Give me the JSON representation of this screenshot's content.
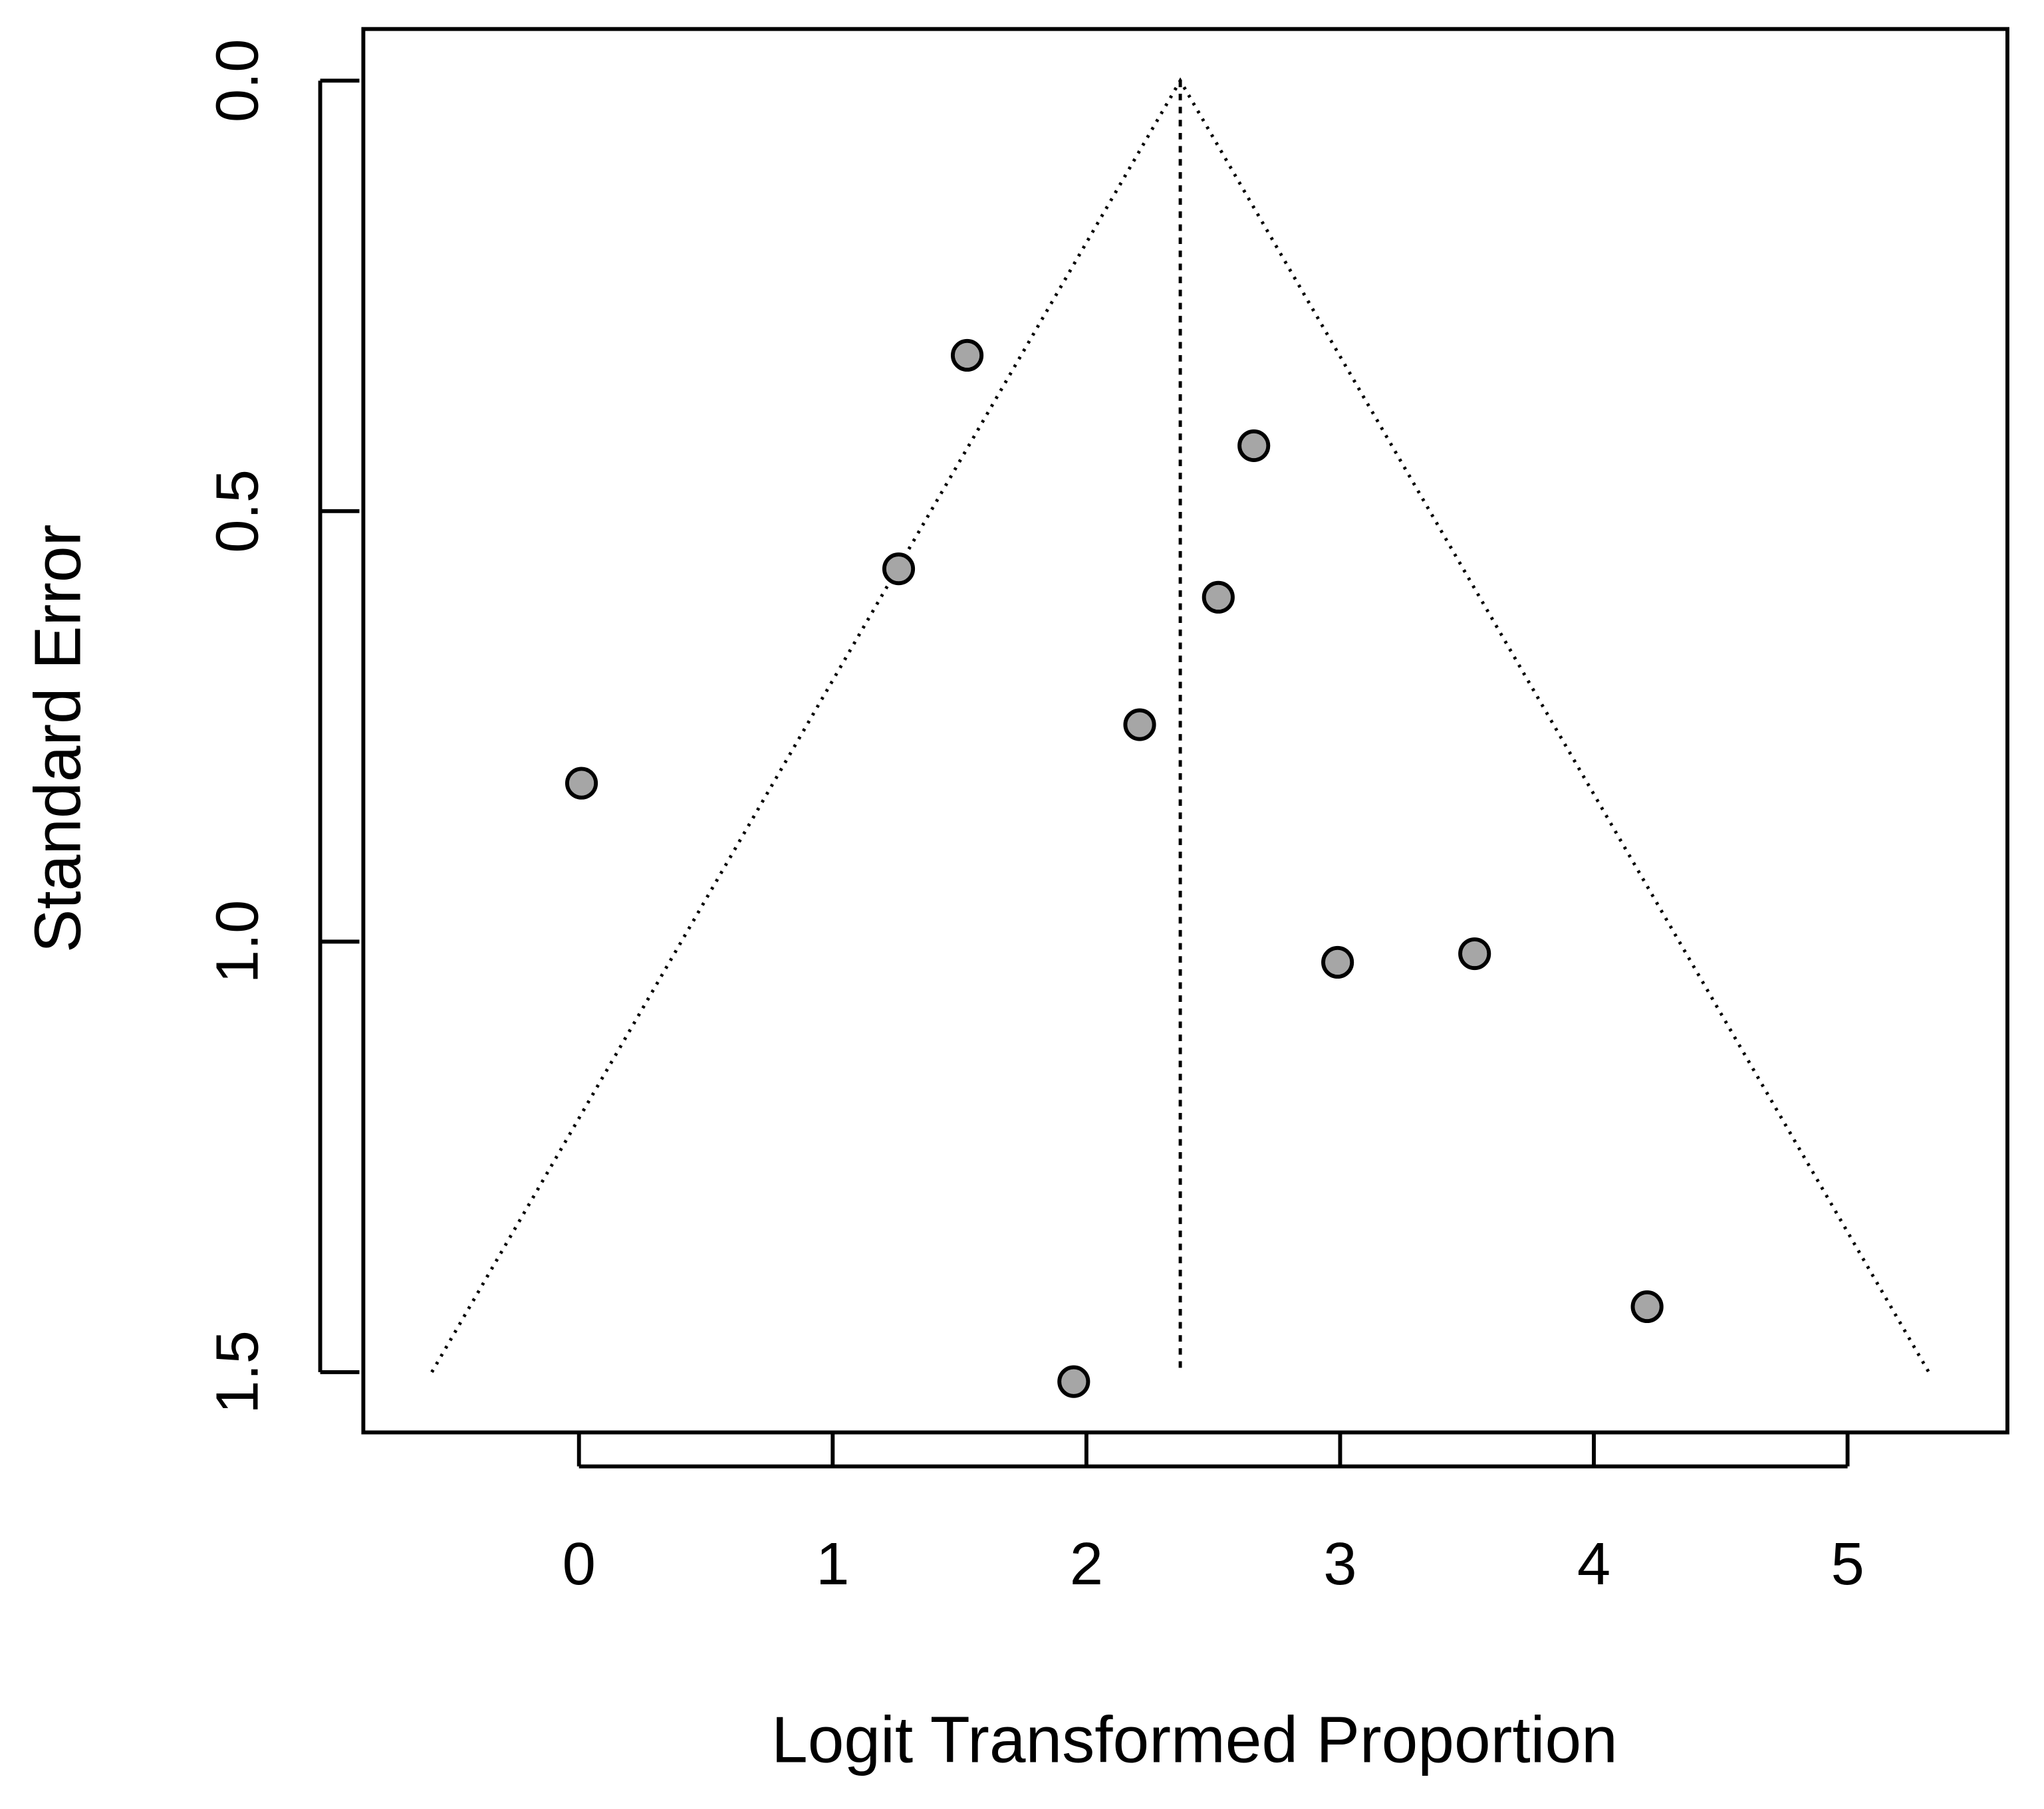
{
  "chart_data": {
    "type": "scatter",
    "x_label": "Logit Transformed Proportion",
    "y_label": "Standard Error",
    "x": [
      1.53,
      2.66,
      1.26,
      2.52,
      2.21,
      0.01,
      2.99,
      3.53,
      4.21,
      1.95
    ],
    "values": [
      0.319,
      0.424,
      0.567,
      0.6,
      0.748,
      0.816,
      1.024,
      1.014,
      1.424,
      1.511
    ],
    "color": "#a6a6a6",
    "reference_line": 2.37,
    "funnel": {
      "x": [
        -0.58,
        2.37,
        5.32
      ],
      "y": [
        1.5,
        0,
        1.5
      ]
    },
    "xlim": [
      -0.85,
      5.63
    ],
    "ylim": [
      1.57,
      -0.06
    ],
    "xticks": [
      0,
      1,
      2,
      3,
      4,
      5
    ],
    "yticks": [
      {
        "value": 0,
        "label": "0.0"
      },
      {
        "value": 0.5,
        "label": "0.5"
      },
      {
        "value": 1,
        "label": "1.0"
      },
      {
        "value": 1.5,
        "label": "1.5"
      }
    ]
  }
}
